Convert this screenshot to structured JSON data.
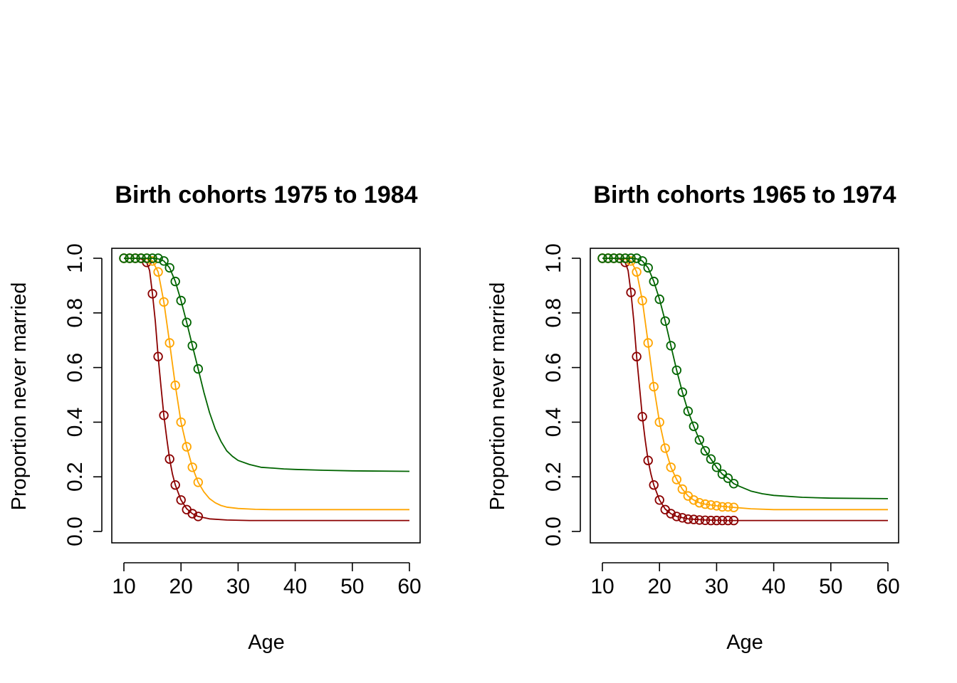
{
  "colors": {
    "dark": "#8b0000",
    "mid": "#ffa500",
    "light": "#006400",
    "axis": "#000000"
  },
  "chart_data": [
    {
      "type": "line",
      "title": "Birth cohorts  1975 to 1984",
      "xlabel": "Age",
      "ylabel": "Proportion never married",
      "xlim": [
        10,
        60
      ],
      "ylim": [
        0,
        1
      ],
      "xticks": [
        "10",
        "20",
        "30",
        "40",
        "50",
        "60"
      ],
      "yticks": [
        "0.0",
        "0.2",
        "0.4",
        "0.6",
        "0.8",
        "1.0"
      ],
      "grid": false,
      "series": [
        {
          "color_key": "dark",
          "points": {
            "x": [
              10,
              11,
              12,
              13,
              14,
              15,
              16,
              17,
              18,
              19,
              20,
              21,
              22,
              23
            ],
            "y": [
              1.0,
              1.0,
              1.0,
              1.0,
              0.985,
              0.87,
              0.64,
              0.425,
              0.265,
              0.17,
              0.115,
              0.08,
              0.065,
              0.055
            ]
          },
          "curve": {
            "x": [
              10,
              12,
              13,
              14,
              14.5,
              15,
              15.5,
              16,
              16.5,
              17,
              17.5,
              18,
              18.5,
              19,
              20,
              21,
              22,
              23,
              25,
              28,
              32,
              40,
              50,
              60
            ],
            "y": [
              1.0,
              1.0,
              0.998,
              0.985,
              0.955,
              0.87,
              0.77,
              0.64,
              0.53,
              0.425,
              0.34,
              0.265,
              0.21,
              0.17,
              0.115,
              0.083,
              0.065,
              0.055,
              0.046,
              0.042,
              0.04,
              0.04,
              0.04,
              0.04
            ]
          }
        },
        {
          "color_key": "mid",
          "points": {
            "x": [
              10,
              11,
              12,
              13,
              14,
              15,
              16,
              17,
              18,
              19,
              20,
              21,
              22,
              23
            ],
            "y": [
              1.0,
              1.0,
              1.0,
              1.0,
              1.0,
              0.99,
              0.95,
              0.84,
              0.69,
              0.535,
              0.4,
              0.31,
              0.235,
              0.18
            ]
          },
          "curve": {
            "x": [
              10,
              13,
              14,
              15,
              16,
              17,
              18,
              19,
              20,
              21,
              22,
              23,
              24,
              25,
              26,
              27,
              28,
              30,
              33,
              36,
              40,
              50,
              60
            ],
            "y": [
              1.0,
              1.0,
              0.998,
              0.99,
              0.95,
              0.84,
              0.69,
              0.535,
              0.4,
              0.31,
              0.235,
              0.18,
              0.145,
              0.12,
              0.105,
              0.095,
              0.089,
              0.084,
              0.081,
              0.08,
              0.08,
              0.08,
              0.08
            ]
          }
        },
        {
          "color_key": "light",
          "points": {
            "x": [
              10,
              11,
              12,
              13,
              14,
              15,
              16,
              17,
              18,
              19,
              20,
              21,
              22,
              23
            ],
            "y": [
              1.0,
              1.0,
              1.0,
              1.0,
              1.0,
              1.0,
              1.0,
              0.99,
              0.965,
              0.915,
              0.845,
              0.765,
              0.68,
              0.595
            ]
          },
          "curve": {
            "x": [
              10,
              15,
              16,
              17,
              18,
              19,
              20,
              21,
              22,
              23,
              24,
              25,
              26,
              27,
              28,
              29,
              30,
              32,
              34,
              36,
              38,
              40,
              45,
              50,
              60
            ],
            "y": [
              1.0,
              1.0,
              0.998,
              0.99,
              0.965,
              0.915,
              0.845,
              0.765,
              0.68,
              0.595,
              0.51,
              0.435,
              0.375,
              0.33,
              0.295,
              0.275,
              0.26,
              0.245,
              0.235,
              0.232,
              0.229,
              0.227,
              0.224,
              0.222,
              0.22
            ]
          }
        }
      ]
    },
    {
      "type": "line",
      "title": "Birth cohorts  1965 to 1974",
      "xlabel": "Age",
      "ylabel": "Proportion never married",
      "xlim": [
        10,
        60
      ],
      "ylim": [
        0,
        1
      ],
      "xticks": [
        "10",
        "20",
        "30",
        "40",
        "50",
        "60"
      ],
      "yticks": [
        "0.0",
        "0.2",
        "0.4",
        "0.6",
        "0.8",
        "1.0"
      ],
      "grid": false,
      "series": [
        {
          "color_key": "dark",
          "points": {
            "x": [
              10,
              11,
              12,
              13,
              14,
              15,
              16,
              17,
              18,
              19,
              20,
              21,
              22,
              23,
              24,
              25,
              26,
              27,
              28,
              29,
              30,
              31,
              32,
              33
            ],
            "y": [
              1.0,
              1.0,
              1.0,
              1.0,
              0.985,
              0.875,
              0.64,
              0.42,
              0.26,
              0.17,
              0.115,
              0.08,
              0.065,
              0.055,
              0.05,
              0.045,
              0.044,
              0.042,
              0.041,
              0.04,
              0.04,
              0.04,
              0.04,
              0.04
            ]
          },
          "curve": {
            "x": [
              10,
              12,
              13,
              14,
              14.5,
              15,
              15.5,
              16,
              16.5,
              17,
              17.5,
              18,
              18.5,
              19,
              20,
              21,
              22,
              23,
              25,
              28,
              32,
              40,
              50,
              60
            ],
            "y": [
              1.0,
              1.0,
              0.998,
              0.985,
              0.955,
              0.875,
              0.77,
              0.64,
              0.53,
              0.42,
              0.335,
              0.26,
              0.21,
              0.17,
              0.115,
              0.082,
              0.065,
              0.055,
              0.046,
              0.042,
              0.04,
              0.04,
              0.04,
              0.04
            ]
          }
        },
        {
          "color_key": "mid",
          "points": {
            "x": [
              10,
              11,
              12,
              13,
              14,
              15,
              16,
              17,
              18,
              19,
              20,
              21,
              22,
              23,
              24,
              25,
              26,
              27,
              28,
              29,
              30,
              31,
              32,
              33
            ],
            "y": [
              1.0,
              1.0,
              1.0,
              1.0,
              1.0,
              0.99,
              0.95,
              0.845,
              0.69,
              0.53,
              0.4,
              0.305,
              0.235,
              0.19,
              0.155,
              0.13,
              0.115,
              0.105,
              0.1,
              0.097,
              0.094,
              0.09,
              0.09,
              0.088
            ]
          },
          "curve": {
            "x": [
              10,
              13,
              14,
              15,
              16,
              17,
              18,
              19,
              20,
              21,
              22,
              23,
              24,
              25,
              26,
              27,
              28,
              30,
              33,
              36,
              40,
              50,
              60
            ],
            "y": [
              1.0,
              1.0,
              0.998,
              0.99,
              0.95,
              0.845,
              0.69,
              0.53,
              0.4,
              0.305,
              0.235,
              0.19,
              0.155,
              0.13,
              0.115,
              0.105,
              0.1,
              0.094,
              0.088,
              0.083,
              0.08,
              0.08,
              0.08
            ]
          }
        },
        {
          "color_key": "light",
          "points": {
            "x": [
              10,
              11,
              12,
              13,
              14,
              15,
              16,
              17,
              18,
              19,
              20,
              21,
              22,
              23,
              24,
              25,
              26,
              27,
              28,
              29,
              30,
              31,
              32,
              33
            ],
            "y": [
              1.0,
              1.0,
              1.0,
              1.0,
              1.0,
              1.0,
              1.0,
              0.99,
              0.965,
              0.915,
              0.85,
              0.77,
              0.68,
              0.59,
              0.51,
              0.44,
              0.385,
              0.335,
              0.295,
              0.265,
              0.235,
              0.21,
              0.195,
              0.175
            ]
          },
          "curve": {
            "x": [
              10,
              15,
              16,
              17,
              18,
              19,
              20,
              21,
              22,
              23,
              24,
              25,
              26,
              27,
              28,
              29,
              30,
              31,
              32,
              33,
              34,
              36,
              38,
              40,
              45,
              50,
              60
            ],
            "y": [
              1.0,
              1.0,
              0.998,
              0.99,
              0.965,
              0.915,
              0.85,
              0.77,
              0.68,
              0.59,
              0.51,
              0.44,
              0.385,
              0.335,
              0.295,
              0.265,
              0.235,
              0.21,
              0.195,
              0.175,
              0.165,
              0.148,
              0.138,
              0.132,
              0.125,
              0.122,
              0.12
            ]
          }
        }
      ]
    }
  ]
}
